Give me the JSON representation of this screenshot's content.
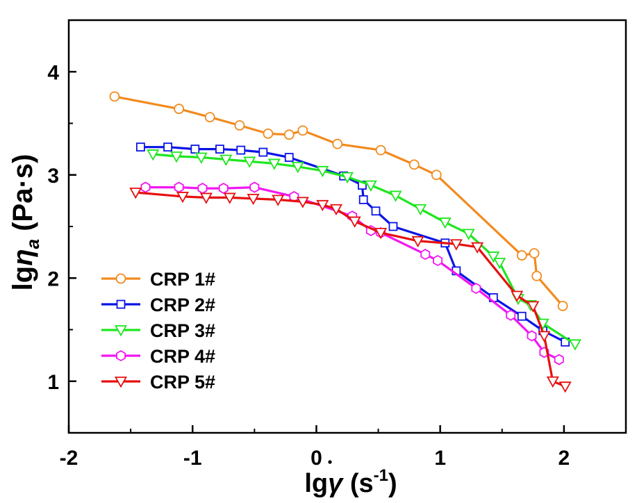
{
  "chart_data": {
    "type": "line",
    "xlabel": "lgγ̇ (s⁻¹)",
    "ylabel": "lgη_a (Pa·s)",
    "xlabel_parts": {
      "base": "lg",
      "symbol": "γ",
      "unit_open": " (s",
      "exp": "-1",
      "unit_close": ")"
    },
    "ylabel_parts": {
      "base": "lg",
      "symbol": "η",
      "sub": "a",
      "unit": " (Pa·s)"
    },
    "xlim": [
      -2,
      2.5
    ],
    "ylim": [
      0.5,
      4.5
    ],
    "xticks": [
      {
        "value": -2,
        "label": "-2"
      },
      {
        "value": -1,
        "label": "-1"
      },
      {
        "value": 0,
        "label": "0"
      },
      {
        "value": 1,
        "label": "1"
      },
      {
        "value": 2,
        "label": "2"
      }
    ],
    "yticks": [
      {
        "value": 1,
        "label": "1"
      },
      {
        "value": 2,
        "label": "2"
      },
      {
        "value": 3,
        "label": "3"
      },
      {
        "value": 4,
        "label": "4"
      }
    ],
    "legend_position": "bottom-left",
    "series": [
      {
        "name": "CRP 1#",
        "color": "#f28a1e",
        "marker": "circle",
        "x": [
          -1.63,
          -1.11,
          -0.86,
          -0.62,
          -0.39,
          -0.22,
          -0.11,
          0.17,
          0.52,
          0.79,
          0.97,
          1.66,
          1.76,
          1.78,
          1.99
        ],
        "y": [
          3.76,
          3.64,
          3.56,
          3.48,
          3.4,
          3.39,
          3.43,
          3.3,
          3.24,
          3.1,
          3.0,
          2.22,
          2.24,
          2.02,
          1.73
        ]
      },
      {
        "name": "CRP 2#",
        "color": "#0a14e6",
        "marker": "square",
        "x": [
          -1.42,
          -1.2,
          -0.98,
          -0.78,
          -0.61,
          -0.43,
          -0.22,
          0.22,
          0.37,
          0.38,
          0.48,
          0.62,
          1.04,
          1.13,
          1.43,
          1.66,
          1.83,
          2.01
        ],
        "y": [
          3.27,
          3.27,
          3.25,
          3.25,
          3.24,
          3.22,
          3.17,
          2.99,
          2.9,
          2.76,
          2.65,
          2.5,
          2.34,
          2.07,
          1.81,
          1.63,
          1.49,
          1.38
        ]
      },
      {
        "name": "CRP 3#",
        "color": "#1ee61e",
        "marker": "triangle-down",
        "x": [
          -1.32,
          -1.13,
          -0.93,
          -0.73,
          -0.54,
          -0.34,
          -0.15,
          0.05,
          0.25,
          0.44,
          0.64,
          0.84,
          1.04,
          1.23,
          1.43,
          1.48,
          1.63,
          1.73,
          1.83,
          2.09
        ],
        "y": [
          3.2,
          3.18,
          3.17,
          3.15,
          3.13,
          3.11,
          3.08,
          3.04,
          2.98,
          2.9,
          2.8,
          2.67,
          2.54,
          2.43,
          2.21,
          2.15,
          1.8,
          1.74,
          1.56,
          1.36
        ]
      },
      {
        "name": "CRP 4#",
        "color": "#f216f2",
        "marker": "hexagon",
        "x": [
          -1.38,
          -1.11,
          -0.92,
          -0.75,
          -0.5,
          -0.18,
          0.29,
          0.44,
          0.52,
          0.88,
          0.98,
          1.29,
          1.57,
          1.74,
          1.84,
          1.96
        ],
        "y": [
          2.88,
          2.88,
          2.87,
          2.87,
          2.88,
          2.79,
          2.6,
          2.46,
          2.44,
          2.23,
          2.17,
          1.9,
          1.64,
          1.44,
          1.28,
          1.21
        ]
      },
      {
        "name": "CRP 5#",
        "color": "#e60f0f",
        "marker": "triangle-down",
        "x": [
          -1.46,
          -1.08,
          -0.89,
          -0.7,
          -0.51,
          -0.31,
          -0.11,
          0.05,
          0.16,
          0.31,
          0.52,
          0.82,
          1.13,
          1.3,
          1.62,
          1.75,
          1.84,
          1.91,
          2.01
        ],
        "y": [
          2.83,
          2.79,
          2.78,
          2.78,
          2.77,
          2.76,
          2.74,
          2.71,
          2.67,
          2.55,
          2.44,
          2.36,
          2.33,
          2.3,
          1.83,
          1.73,
          1.44,
          1.0,
          0.95
        ]
      }
    ]
  }
}
